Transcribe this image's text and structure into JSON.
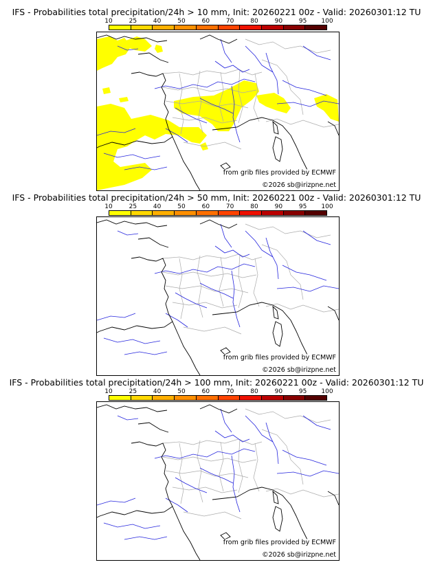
{
  "scale": {
    "labels": [
      "10",
      "25",
      "40",
      "50",
      "60",
      "70",
      "80",
      "90",
      "95",
      "100"
    ],
    "colors": [
      "#ffff00",
      "#ffd900",
      "#ffb000",
      "#ff9000",
      "#ff7000",
      "#ff4400",
      "#ee1100",
      "#bb0000",
      "#880000",
      "#550000"
    ]
  },
  "credits": {
    "source": "from grib files provided by ECMWF",
    "copyright": "©2026 sb@irizpne.net"
  },
  "panels": [
    {
      "title": "IFS - Probabilities total precipitation/24h > 10 mm, Init: 20260221 00z - Valid: 20260301:12 TU",
      "threshold": "10 mm"
    },
    {
      "title": "IFS - Probabilities total precipitation/24h > 50 mm, Init: 20260221 00z - Valid: 20260301:12 TU",
      "threshold": "50 mm"
    },
    {
      "title": "IFS - Probabilities total precipitation/24h > 100 mm, Init: 20260221 00z - Valid: 20260301:12 TU",
      "threshold": "100 mm"
    }
  ],
  "colors": {
    "coast": "#000000",
    "rivers": "#2222dd",
    "borders": "#aaaaaa",
    "precip": "#ffff00"
  }
}
